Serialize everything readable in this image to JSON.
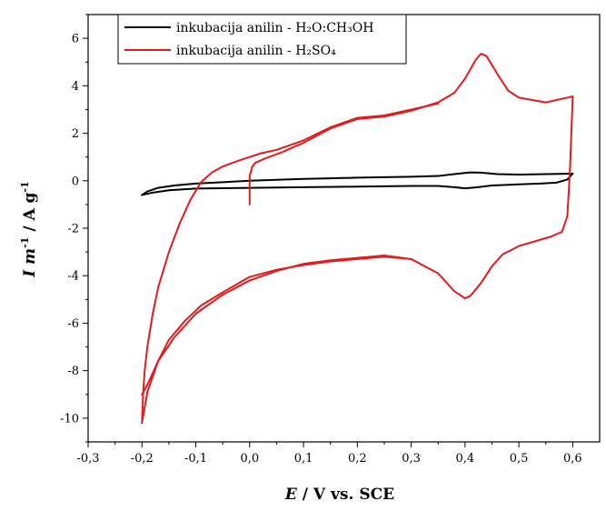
{
  "chart_data": {
    "type": "line",
    "title": "",
    "xlabel": {
      "var": "E",
      "rest": " / V  vs.  SCE"
    },
    "ylabel": {
      "var_i": "I m",
      "sup": "-1",
      "unit": " / A g",
      "unit_sup": "-1"
    },
    "xlim": [
      -0.3,
      0.65
    ],
    "ylim": [
      -11,
      7
    ],
    "x_ticks": [
      -0.3,
      -0.2,
      -0.1,
      0.0,
      0.1,
      0.2,
      0.3,
      0.4,
      0.5,
      0.6
    ],
    "x_tick_labels": [
      "-0,3",
      "-0,2",
      "-0,1",
      "0,0",
      "0,1",
      "0,2",
      "0,3",
      "0,4",
      "0,5",
      "0,6"
    ],
    "y_ticks": [
      -10,
      -8,
      -6,
      -4,
      -2,
      0,
      2,
      4,
      6
    ],
    "y_tick_labels": [
      "-10",
      "-8",
      "-6",
      "-4",
      "-2",
      "0",
      "2",
      "4",
      "6"
    ],
    "grid": false,
    "legend_position": "top-left",
    "series": [
      {
        "name": "inkubacija anilin - H₂O:CH₃OH",
        "color": "#000000",
        "curves": [
          {
            "x": [
              -0.2,
              -0.19,
              -0.17,
              -0.14,
              -0.1,
              -0.05,
              0.0,
              0.05,
              0.1,
              0.15,
              0.2,
              0.25,
              0.3,
              0.35,
              0.38,
              0.41,
              0.43,
              0.46,
              0.5,
              0.55,
              0.6
            ],
            "y": [
              -0.6,
              -0.45,
              -0.3,
              -0.2,
              -0.12,
              -0.06,
              0.0,
              0.04,
              0.08,
              0.1,
              0.13,
              0.15,
              0.17,
              0.2,
              0.28,
              0.35,
              0.34,
              0.28,
              0.26,
              0.28,
              0.3
            ]
          },
          {
            "x": [
              0.6,
              0.59,
              0.57,
              0.54,
              0.5,
              0.45,
              0.42,
              0.4,
              0.38,
              0.35,
              0.3,
              0.2,
              0.1,
              0.0,
              -0.1,
              -0.15,
              -0.18,
              -0.2
            ],
            "y": [
              0.3,
              0.05,
              -0.08,
              -0.12,
              -0.15,
              -0.2,
              -0.28,
              -0.32,
              -0.27,
              -0.22,
              -0.22,
              -0.25,
              -0.27,
              -0.3,
              -0.33,
              -0.4,
              -0.5,
              -0.6
            ]
          }
        ]
      },
      {
        "name": "inkubacija anilin - H₂SO₄",
        "color": "#e41a1c",
        "curves": [
          {
            "x": [
              0.0,
              0.0,
              0.005,
              0.01,
              0.03,
              0.06,
              0.1,
              0.15,
              0.2,
              0.25,
              0.3,
              0.35,
              0.38,
              0.4,
              0.42,
              0.43,
              0.44,
              0.46,
              0.48,
              0.5,
              0.55,
              0.58,
              0.6
            ],
            "y": [
              -1.0,
              0.2,
              0.6,
              0.75,
              0.95,
              1.2,
              1.6,
              2.2,
              2.6,
              2.7,
              2.95,
              3.3,
              3.7,
              4.3,
              5.1,
              5.35,
              5.25,
              4.5,
              3.8,
              3.5,
              3.3,
              3.45,
              3.55
            ]
          },
          {
            "x": [
              0.6,
              0.595,
              0.59,
              0.58,
              0.56,
              0.53,
              0.5,
              0.47,
              0.45,
              0.43,
              0.41,
              0.4,
              0.38,
              0.35,
              0.3,
              0.25,
              0.2,
              0.15,
              0.1,
              0.05,
              0.0,
              -0.05,
              -0.1,
              -0.14,
              -0.17,
              -0.19,
              -0.2
            ],
            "y": [
              3.55,
              0.5,
              -1.5,
              -2.15,
              -2.35,
              -2.55,
              -2.75,
              -3.1,
              -3.6,
              -4.3,
              -4.85,
              -4.95,
              -4.65,
              -3.9,
              -3.3,
              -3.15,
              -3.25,
              -3.35,
              -3.5,
              -3.8,
              -4.2,
              -4.8,
              -5.6,
              -6.6,
              -7.6,
              -8.6,
              -9.0
            ]
          },
          {
            "x": [
              -0.2,
              -0.198,
              -0.195,
              -0.19,
              -0.18,
              -0.17,
              -0.15,
              -0.13,
              -0.11,
              -0.09,
              -0.07,
              -0.05,
              -0.02,
              0.0,
              0.02,
              0.05,
              0.1,
              0.15,
              0.2,
              0.25,
              0.3,
              0.35
            ],
            "y": [
              -10.2,
              -9.0,
              -8.0,
              -7.0,
              -5.6,
              -4.5,
              -3.0,
              -1.8,
              -0.8,
              -0.05,
              0.35,
              0.6,
              0.85,
              1.0,
              1.15,
              1.3,
              1.7,
              2.25,
              2.65,
              2.75,
              3.0,
              3.25
            ]
          },
          {
            "x": [
              -0.2,
              -0.19,
              -0.17,
              -0.15,
              -0.12,
              -0.09,
              -0.05,
              0.0,
              0.05,
              0.1,
              0.15,
              0.2,
              0.25,
              0.3
            ],
            "y": [
              -10.2,
              -8.9,
              -7.6,
              -6.7,
              -5.9,
              -5.25,
              -4.7,
              -4.05,
              -3.75,
              -3.55,
              -3.4,
              -3.3,
              -3.2,
              -3.3
            ]
          }
        ]
      }
    ]
  }
}
